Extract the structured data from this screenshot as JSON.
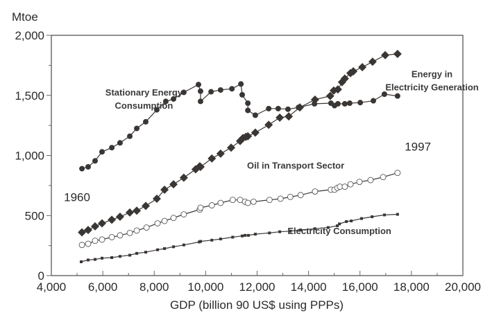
{
  "chart_data": {
    "type": "line",
    "title": "",
    "xlabel": "GDP (billion 90 US$ using PPPs)",
    "ylabel": "Mtoe",
    "xlim": [
      4000,
      20000
    ],
    "ylim": [
      0,
      2000
    ],
    "grid": false,
    "x_ticks": [
      4000,
      6000,
      8000,
      10000,
      12000,
      14000,
      16000,
      18000,
      20000
    ],
    "x_tick_labels": [
      "4,000",
      "6,000",
      "8,000",
      "10,000",
      "12,000",
      "14,000",
      "16,000",
      "18,000",
      "20,000"
    ],
    "y_ticks": [
      0,
      500,
      1000,
      1500,
      2000
    ],
    "y_tick_labels": [
      "0",
      "500",
      "1,000",
      "1,500",
      "2,000"
    ],
    "annotations": [
      {
        "text": "1960",
        "x": 5000,
        "y": 620
      },
      {
        "text": "1997",
        "x": 18250,
        "y": 1040
      }
    ],
    "series": [
      {
        "name": "Stationary Energy Consumption",
        "label_lines": [
          "Stationary Energy",
          "Consumption"
        ],
        "label_at": [
          7600,
          1500
        ],
        "marker": "filled-circle",
        "x": [
          5190,
          5430,
          5700,
          5970,
          6350,
          6670,
          7050,
          7320,
          7670,
          8100,
          8450,
          8750,
          9150,
          9720,
          9800,
          9800,
          10210,
          10580,
          11020,
          11370,
          11420,
          11640,
          11640,
          11930,
          12450,
          12820,
          13200,
          13610,
          14230,
          14870,
          15010,
          15140,
          15410,
          15600,
          16010,
          16520,
          16950,
          17460
        ],
        "y": [
          890,
          905,
          955,
          1030,
          1065,
          1105,
          1160,
          1225,
          1280,
          1380,
          1450,
          1470,
          1525,
          1590,
          1535,
          1450,
          1530,
          1545,
          1555,
          1595,
          1505,
          1435,
          1375,
          1335,
          1390,
          1390,
          1385,
          1400,
          1430,
          1435,
          1415,
          1430,
          1430,
          1435,
          1440,
          1455,
          1510,
          1495
        ]
      },
      {
        "name": "Energy in Electricity Generation",
        "label_lines": [
          "Energy in",
          "Electricity Generation"
        ],
        "label_at": [
          18800,
          1650
        ],
        "marker": "filled-diamond",
        "x": [
          5190,
          5430,
          5700,
          5970,
          6350,
          6670,
          7050,
          7320,
          7670,
          8100,
          8400,
          8750,
          9150,
          9610,
          9770,
          9800,
          10240,
          10580,
          10990,
          11340,
          11450,
          11560,
          11640,
          11930,
          12450,
          12880,
          13230,
          13660,
          14250,
          14840,
          14980,
          15140,
          15300,
          15410,
          15630,
          15740,
          16090,
          16490,
          16980,
          17460
        ],
        "y": [
          360,
          380,
          410,
          435,
          465,
          490,
          525,
          540,
          580,
          640,
          715,
          760,
          815,
          885,
          910,
          905,
          975,
          1015,
          1065,
          1120,
          1145,
          1155,
          1160,
          1190,
          1255,
          1315,
          1325,
          1400,
          1465,
          1495,
          1540,
          1550,
          1610,
          1640,
          1685,
          1700,
          1735,
          1780,
          1835,
          1845
        ]
      },
      {
        "name": "Oil in Transport Sector",
        "label_lines": [
          "Oil in Transport Sector"
        ],
        "label_at": [
          13500,
          890
        ],
        "marker": "open-circle",
        "x": [
          5190,
          5430,
          5700,
          5970,
          6350,
          6670,
          7050,
          7320,
          7700,
          8130,
          8400,
          8750,
          9150,
          9770,
          9800,
          10240,
          10580,
          11050,
          11340,
          11530,
          11640,
          11860,
          12480,
          12910,
          13290,
          13690,
          14250,
          14870,
          15010,
          15120,
          15220,
          15410,
          15630,
          15980,
          16410,
          16900,
          17460
        ],
        "y": [
          255,
          265,
          290,
          300,
          320,
          335,
          355,
          375,
          400,
          435,
          455,
          480,
          510,
          550,
          565,
          585,
          605,
          630,
          630,
          615,
          605,
          615,
          630,
          640,
          655,
          670,
          700,
          715,
          715,
          730,
          740,
          740,
          760,
          780,
          795,
          820,
          855
        ]
      },
      {
        "name": "Electricity Consumption",
        "label_lines": [
          "Electricity Consumption"
        ],
        "label_at": [
          15200,
          345
        ],
        "marker": "filled-square",
        "x": [
          5160,
          5430,
          5700,
          5970,
          6350,
          6670,
          7050,
          7320,
          7670,
          8130,
          8400,
          8750,
          9150,
          9750,
          9800,
          10240,
          10580,
          11050,
          11420,
          11530,
          11660,
          11930,
          12480,
          12880,
          13290,
          13690,
          14250,
          14760,
          15120,
          15200,
          15470,
          15660,
          16060,
          16470,
          16950,
          17460
        ],
        "y": [
          115,
          130,
          135,
          145,
          150,
          160,
          170,
          185,
          195,
          215,
          225,
          240,
          255,
          280,
          285,
          295,
          305,
          320,
          330,
          335,
          335,
          345,
          355,
          365,
          370,
          380,
          390,
          400,
          415,
          430,
          450,
          455,
          475,
          490,
          505,
          510
        ]
      }
    ]
  }
}
